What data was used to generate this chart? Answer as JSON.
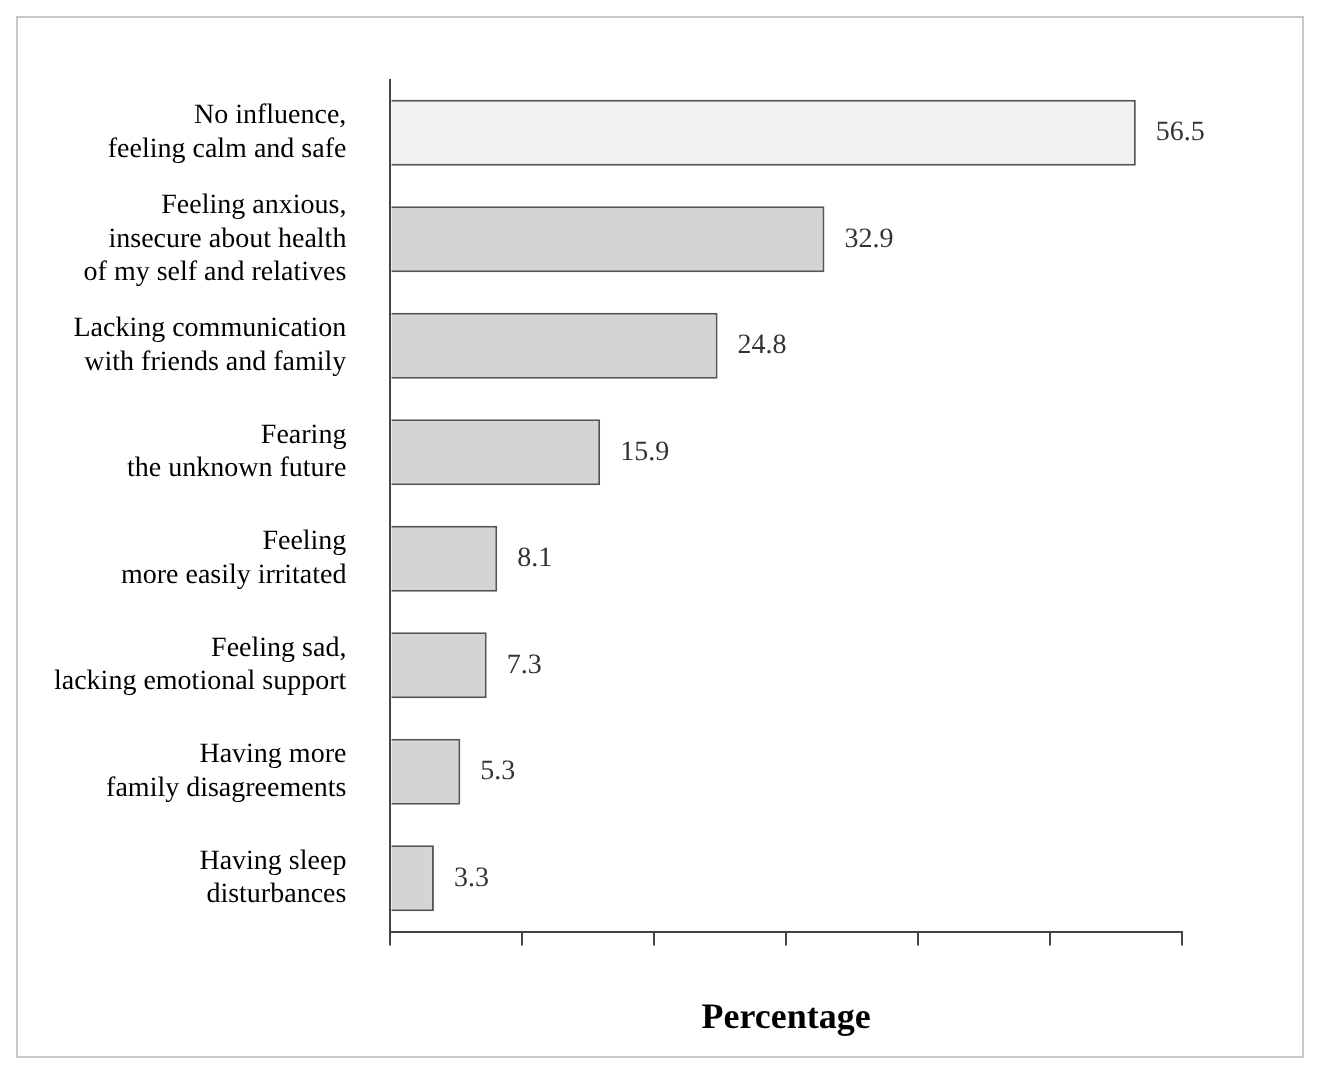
{
  "chart_data": {
    "type": "bar",
    "orientation": "horizontal",
    "xlabel": "Percentage",
    "categories": [
      "No influence,\nfeeling calm and safe",
      "Feeling anxious,\ninsecure about health\nof my self and relatives",
      "Lacking communication\nwith friends and family",
      "Fearing\nthe unknown future",
      "Feeling\nmore easily irritated",
      "Feeling sad,\nlacking emotional support",
      "Having more\nfamily disagreements",
      "Having sleep\ndisturbances"
    ],
    "values": [
      56.5,
      32.9,
      24.8,
      15.9,
      8.1,
      7.3,
      5.3,
      3.3
    ],
    "colors": [
      "#f2f2f2",
      "#d4d4d4",
      "#d4d4d4",
      "#d4d4d4",
      "#d4d4d4",
      "#d4d4d4",
      "#d4d4d4",
      "#d4d4d4"
    ],
    "tick_labels": "y",
    "grid": false,
    "legend": false,
    "data_labels": true
  }
}
